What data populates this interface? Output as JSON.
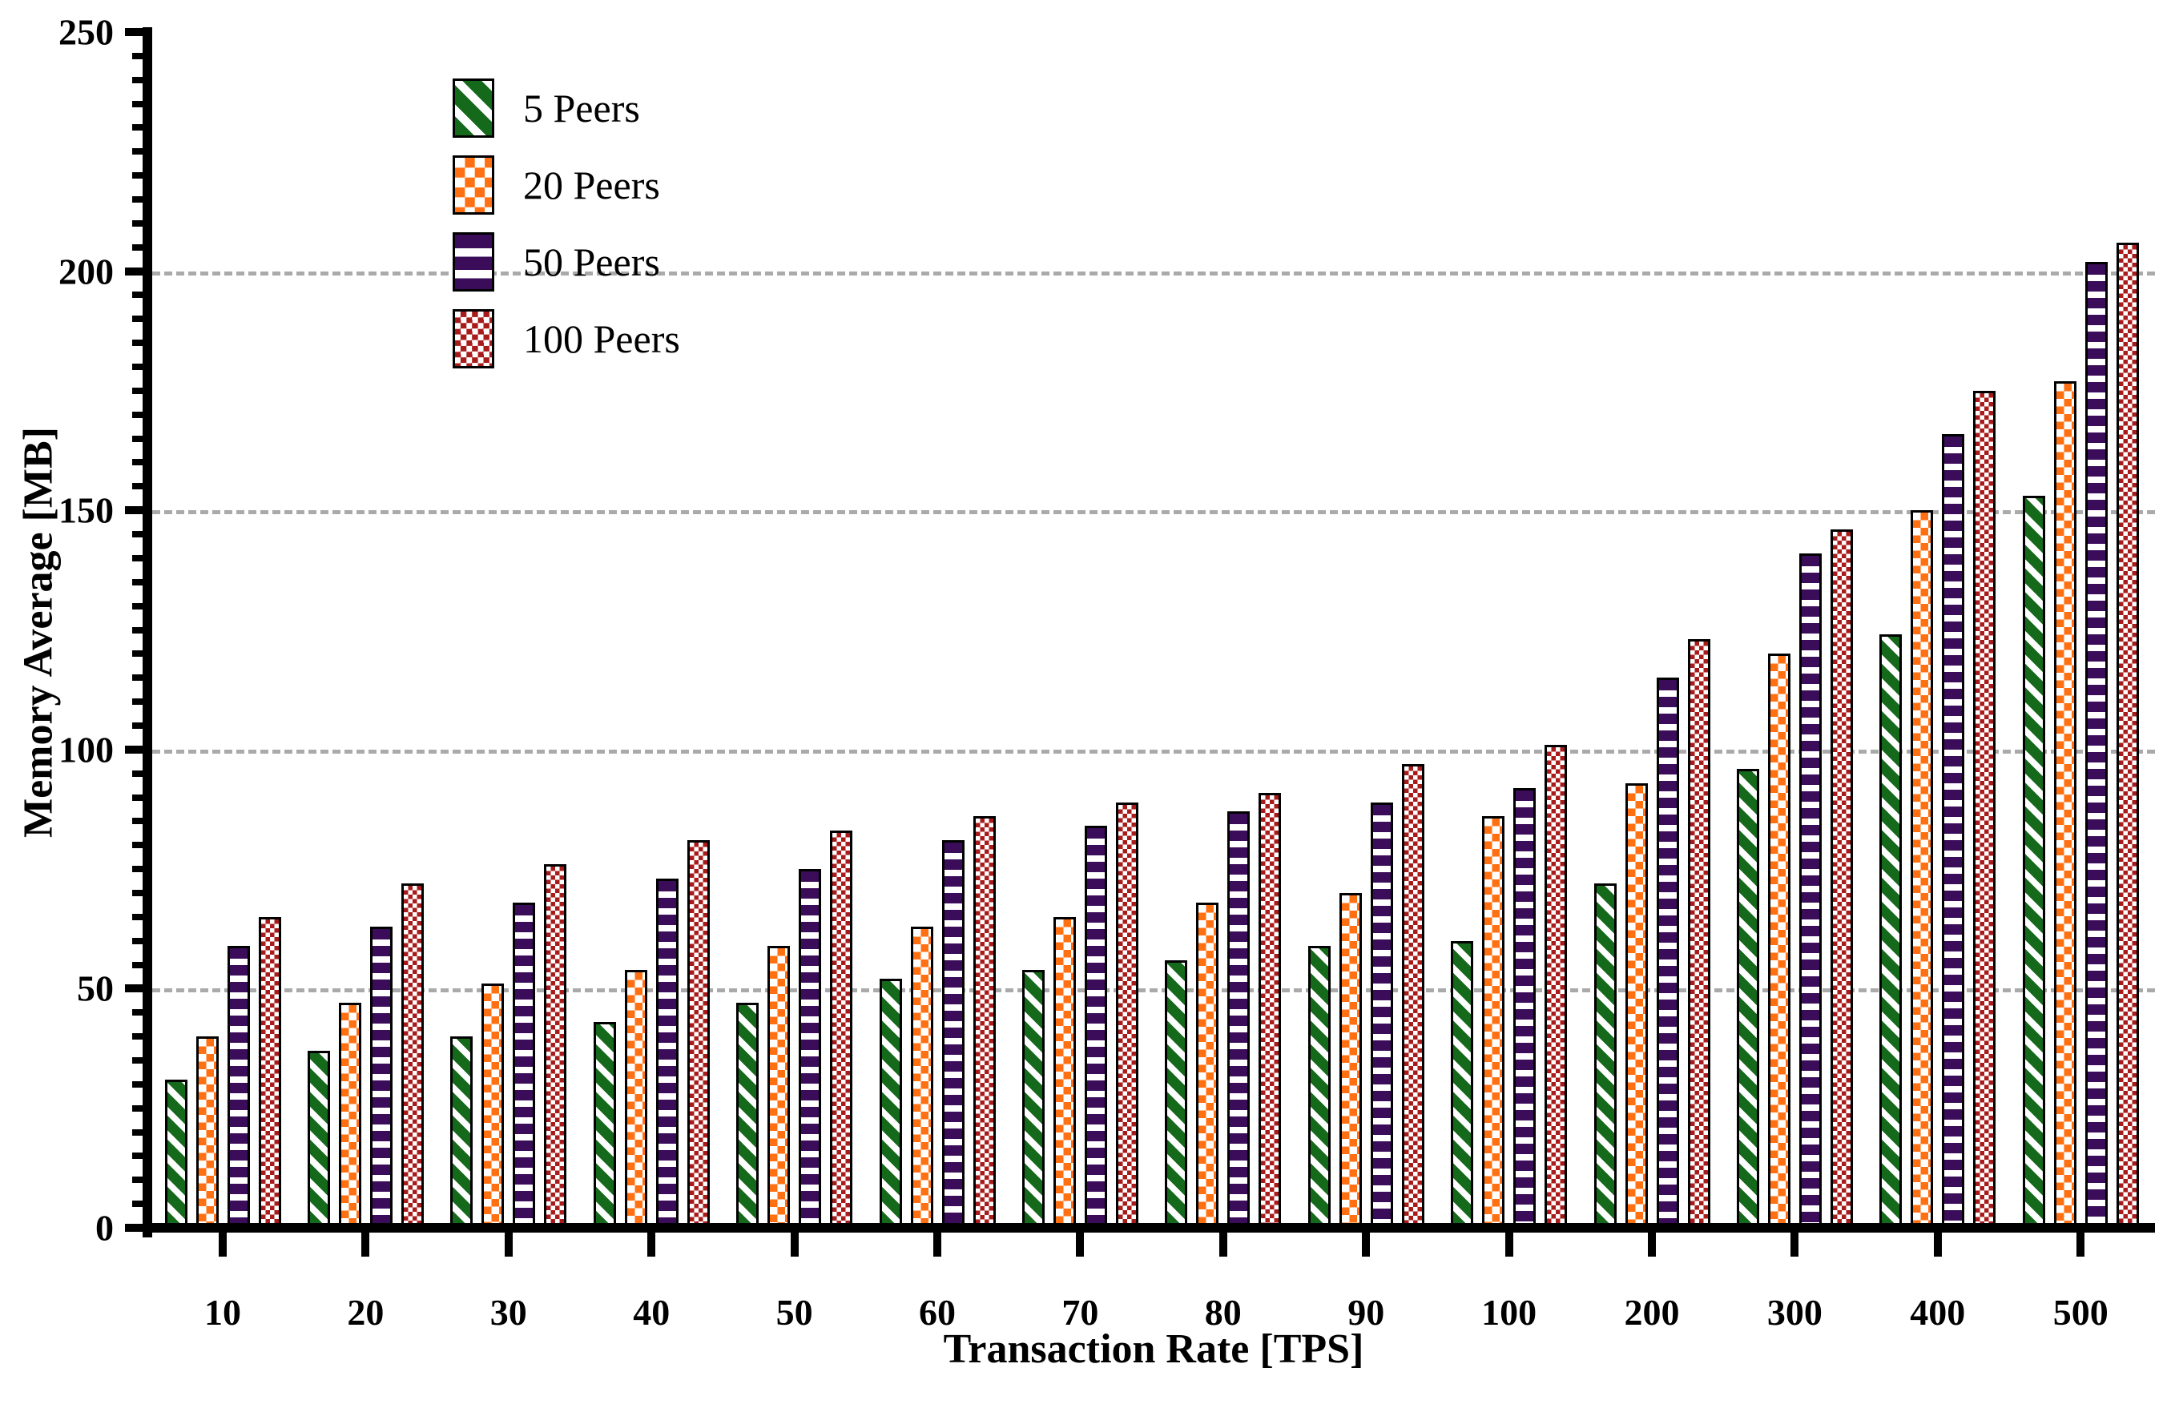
{
  "chart_data": {
    "type": "bar",
    "title": "",
    "xlabel": "Transaction Rate [TPS]",
    "ylabel": "Memory Average [MB]",
    "ylim": [
      0,
      250
    ],
    "yticks": [
      0,
      50,
      100,
      150,
      200,
      250
    ],
    "ytick_minor_step": 5,
    "gridlines_at": [
      50,
      100,
      150,
      200
    ],
    "grid_style": "dashed-gray",
    "legend_position": "top-left-inside",
    "categories": [
      "10",
      "20",
      "30",
      "40",
      "50",
      "60",
      "70",
      "80",
      "90",
      "100",
      "200",
      "300",
      "400",
      "500"
    ],
    "series": [
      {
        "name": "5 Peers",
        "color": "#15691B",
        "pattern": "diagonal-stripes",
        "values": [
          31,
          37,
          40,
          43,
          47,
          52,
          54,
          56,
          59,
          60,
          72,
          96,
          124,
          153
        ]
      },
      {
        "name": "20 Peers",
        "color": "#FF7012",
        "pattern": "checkerboard",
        "values": [
          40,
          47,
          51,
          54,
          59,
          63,
          65,
          68,
          70,
          86,
          93,
          120,
          150,
          177
        ]
      },
      {
        "name": "50 Peers",
        "color": "#3A0C59",
        "pattern": "horizontal-stripes",
        "values": [
          59,
          63,
          68,
          73,
          75,
          81,
          84,
          87,
          89,
          92,
          115,
          141,
          166,
          202
        ]
      },
      {
        "name": "100 Peers",
        "color": "#A81B1B",
        "pattern": "fine-checkerboard",
        "values": [
          65,
          72,
          76,
          81,
          83,
          86,
          89,
          91,
          97,
          101,
          123,
          146,
          175,
          206
        ]
      }
    ]
  },
  "colors": {
    "axis": "#000000",
    "grid": "#AAAAAA",
    "background": "#FFFFFF"
  }
}
